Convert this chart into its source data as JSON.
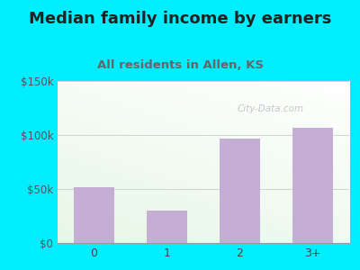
{
  "title": "Median family income by earners",
  "subtitle": "All residents in Allen, KS",
  "categories": [
    "0",
    "1",
    "2",
    "3+"
  ],
  "values": [
    52000,
    30000,
    97000,
    107000
  ],
  "bar_color": "#c4aed4",
  "background_outer": "#00eeff",
  "ylim": [
    0,
    150000
  ],
  "yticks": [
    0,
    50000,
    100000,
    150000
  ],
  "ytick_labels": [
    "$0",
    "$50k",
    "$100k",
    "$150k"
  ],
  "title_fontsize": 13,
  "subtitle_fontsize": 9.5,
  "title_color": "#222222",
  "subtitle_color": "#666666",
  "watermark": "City-Data.com"
}
